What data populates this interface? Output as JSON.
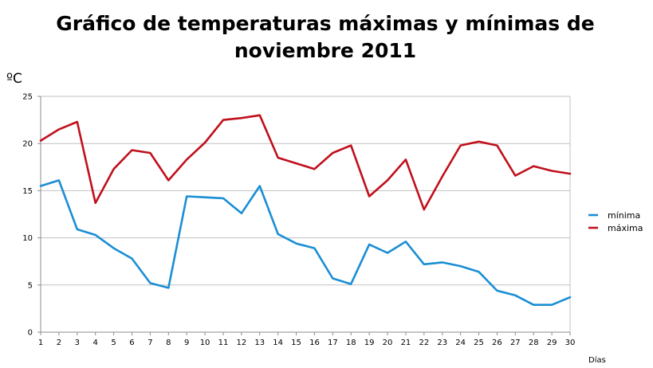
{
  "chart_data": {
    "type": "line",
    "title_line1": "Gráfico de temperaturas máximas y mínimas de",
    "title_line2": "noviembre 2011",
    "ylabel": "ºC",
    "xlabel": "Días",
    "ylim": [
      0,
      25
    ],
    "yticks": [
      0,
      5,
      10,
      15,
      20,
      25
    ],
    "grid": true,
    "legend_position": "right",
    "x": [
      1,
      2,
      3,
      4,
      5,
      6,
      7,
      8,
      9,
      10,
      11,
      12,
      13,
      14,
      15,
      16,
      17,
      18,
      19,
      20,
      21,
      22,
      23,
      24,
      25,
      26,
      27,
      28,
      29,
      30
    ],
    "series": [
      {
        "name": "mínima",
        "color": "#1a8ed4",
        "values": [
          15.5,
          16.1,
          10.9,
          10.3,
          8.9,
          7.8,
          5.2,
          4.7,
          14.4,
          14.3,
          14.2,
          12.6,
          15.5,
          10.4,
          9.4,
          8.9,
          5.7,
          5.1,
          9.3,
          8.4,
          9.6,
          7.2,
          7.4,
          7.0,
          6.4,
          4.4,
          3.9,
          2.9,
          2.9,
          3.7
        ]
      },
      {
        "name": "máxima",
        "color": "#c0101c",
        "values": [
          20.3,
          21.5,
          22.3,
          13.7,
          17.3,
          19.3,
          19.0,
          16.1,
          18.3,
          20.1,
          22.5,
          22.7,
          23.0,
          18.5,
          17.9,
          17.3,
          19.0,
          19.8,
          14.4,
          16.1,
          18.3,
          13.0,
          16.5,
          19.8,
          20.2,
          19.8,
          16.6,
          17.6,
          17.1,
          16.8
        ]
      }
    ]
  }
}
